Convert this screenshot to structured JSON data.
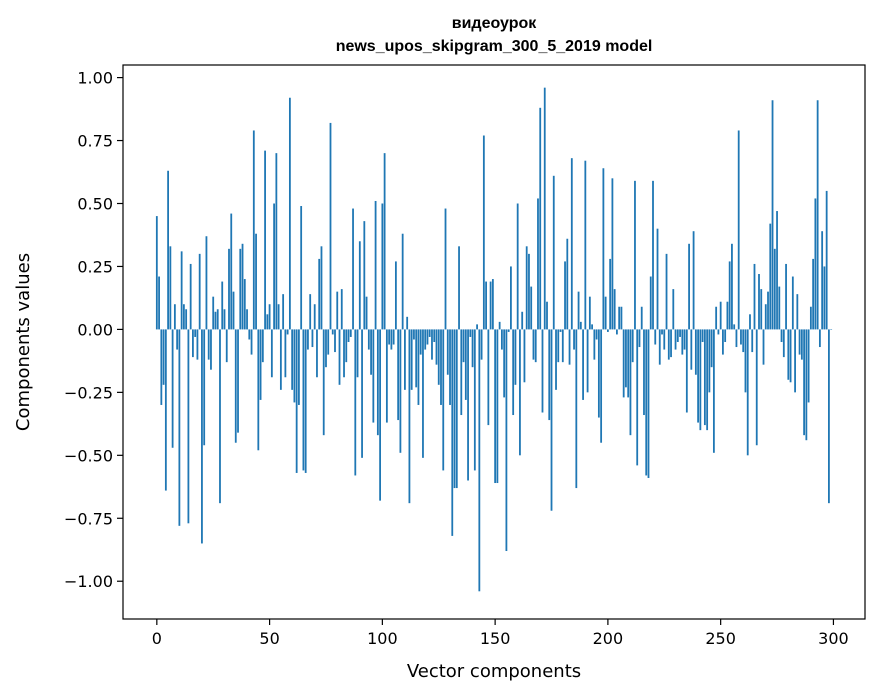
{
  "chart_data": {
    "type": "bar",
    "title": [
      "видеоурок",
      "news_upos_skipgram_300_5_2019 model"
    ],
    "xlabel": "Vector components",
    "ylabel": "Components values",
    "xlim": [
      -15,
      314
    ],
    "ylim": [
      -1.15,
      1.05
    ],
    "xticks": [
      0,
      50,
      100,
      150,
      200,
      250,
      300
    ],
    "yticks": [
      1.0,
      0.75,
      0.5,
      0.25,
      0.0,
      -0.25,
      -0.5,
      -0.75,
      -1.0
    ],
    "ytick_labels": [
      "1.00",
      "0.75",
      "0.50",
      "0.25",
      "0.00",
      "−0.25",
      "−0.50",
      "−0.75",
      "−1.00"
    ],
    "bar_color": "#1f77b4",
    "grid": false,
    "values": [
      0.45,
      0.21,
      -0.3,
      -0.22,
      -0.64,
      0.63,
      0.33,
      -0.47,
      0.1,
      -0.08,
      -0.78,
      0.31,
      0.1,
      0.08,
      -0.77,
      0.26,
      -0.11,
      -0.03,
      -0.12,
      0.3,
      -0.85,
      -0.46,
      0.37,
      -0.12,
      -0.16,
      0.13,
      0.07,
      0.08,
      -0.69,
      0.19,
      0.08,
      -0.13,
      0.32,
      0.46,
      0.15,
      -0.45,
      -0.41,
      0.32,
      0.34,
      0.2,
      0.08,
      -0.04,
      -0.1,
      0.79,
      0.38,
      -0.48,
      -0.28,
      -0.13,
      0.71,
      0.06,
      0.1,
      -0.19,
      0.5,
      0.7,
      0.1,
      -0.24,
      0.14,
      -0.19,
      -0.02,
      0.92,
      -0.24,
      -0.29,
      -0.57,
      -0.3,
      0.49,
      -0.56,
      -0.57,
      -0.08,
      0.14,
      -0.07,
      0.1,
      -0.19,
      0.28,
      0.33,
      -0.42,
      -0.15,
      -0.1,
      0.82,
      -0.02,
      -0.09,
      0.15,
      -0.22,
      0.16,
      -0.19,
      -0.13,
      -0.05,
      -0.03,
      0.48,
      -0.58,
      -0.19,
      0.35,
      -0.51,
      0.43,
      0.13,
      -0.08,
      -0.18,
      -0.37,
      0.51,
      -0.42,
      -0.68,
      0.5,
      0.7,
      -0.37,
      -0.06,
      -0.08,
      -0.06,
      0.27,
      -0.36,
      -0.49,
      0.38,
      -0.24,
      0.05,
      -0.69,
      -0.24,
      -0.04,
      -0.23,
      -0.3,
      -0.1,
      -0.51,
      -0.08,
      -0.06,
      -0.03,
      -0.12,
      -0.05,
      -0.14,
      -0.22,
      -0.3,
      -0.56,
      0.48,
      -0.18,
      -0.3,
      -0.82,
      -0.63,
      -0.63,
      0.33,
      -0.34,
      -0.13,
      -0.28,
      -0.6,
      -0.03,
      -0.15,
      -0.56,
      0.02,
      -1.04,
      -0.12,
      0.77,
      0.19,
      -0.38,
      0.19,
      0.2,
      -0.61,
      -0.61,
      0.03,
      -0.08,
      -0.27,
      -0.88,
      -0.01,
      0.25,
      -0.34,
      -0.22,
      0.5,
      -0.5,
      0.07,
      -0.21,
      0.33,
      0.3,
      0.17,
      -0.12,
      -0.13,
      0.52,
      0.88,
      -0.33,
      0.96,
      0.11,
      -0.36,
      -0.72,
      0.61,
      -0.24,
      -0.13,
      -0.01,
      -0.13,
      0.27,
      0.36,
      -0.14,
      0.68,
      -0.08,
      -0.63,
      0.15,
      0.03,
      -0.28,
      0.67,
      -0.25,
      0.13,
      0.02,
      -0.12,
      -0.04,
      -0.35,
      -0.45,
      0.64,
      0.13,
      -0.01,
      0.28,
      0.6,
      0.16,
      -0.02,
      0.09,
      0.09,
      -0.27,
      -0.23,
      -0.27,
      -0.42,
      -0.13,
      0.59,
      -0.54,
      -0.07,
      0.09,
      -0.34,
      -0.58,
      -0.59,
      0.21,
      0.59,
      -0.06,
      0.4,
      -0.14,
      -0.02,
      -0.08,
      0.3,
      -0.12,
      -0.11,
      0.16,
      -0.08,
      -0.05,
      -0.03,
      -0.1,
      -0.08,
      -0.33,
      0.34,
      -0.16,
      0.39,
      -0.18,
      -0.37,
      -0.4,
      -0.05,
      -0.38,
      -0.4,
      -0.25,
      -0.15,
      -0.49,
      0.09,
      -0.02,
      0.11,
      -0.1,
      -0.05,
      0.11,
      0.27,
      0.34,
      0.02,
      -0.07,
      0.79,
      -0.06,
      -0.09,
      -0.25,
      -0.5,
      0.06,
      -0.09,
      0.26,
      -0.46,
      0.22,
      0.16,
      -0.14,
      0.1,
      0.15,
      0.42,
      0.91,
      0.32,
      0.47,
      0.17,
      -0.05,
      -0.11,
      0.26,
      -0.2,
      -0.21,
      0.21,
      -0.25,
      0.14,
      -0.1,
      -0.12,
      -0.42,
      -0.44,
      -0.29,
      0.09,
      0.28,
      0.52,
      0.91,
      -0.07,
      0.39,
      0.25,
      0.55,
      -0.69,
      0.0
    ]
  }
}
